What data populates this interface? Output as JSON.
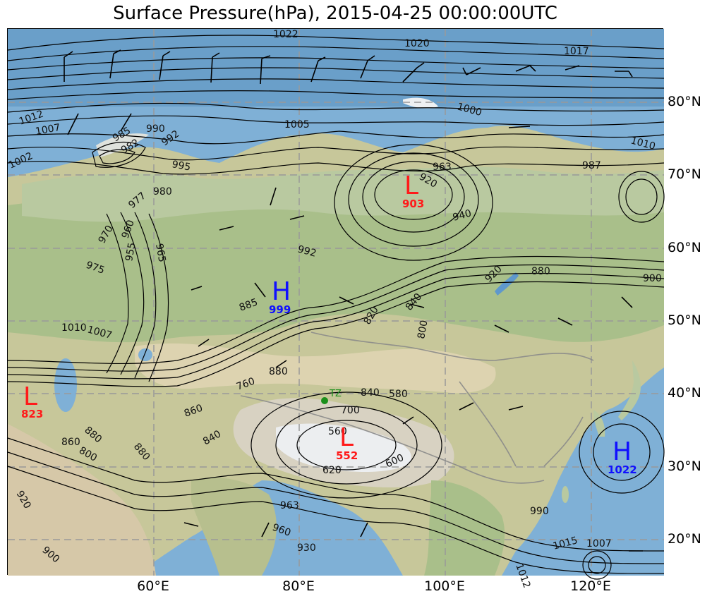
{
  "title": "Surface Pressure(hPa), 2015-04-25 00:00:00UTC",
  "colors": {
    "ocean": "#7fb0d6",
    "land_low": "#d8d6a4",
    "land_green": "#a9bf8a",
    "plateau": "#c9c1b0",
    "snow": "#eef0f2",
    "low_marker": "#ff1a1a",
    "high_marker": "#1010ff",
    "station": "#1a8f1a",
    "grid": "#999999"
  },
  "lat_labels": [
    "80°N",
    "70°N",
    "60°N",
    "50°N",
    "40°N",
    "30°N",
    "20°N"
  ],
  "lon_labels": [
    "60°E",
    "80°E",
    "100°E",
    "120°E"
  ],
  "systems": [
    {
      "type": "low",
      "letter": "L",
      "value": "903"
    },
    {
      "type": "high",
      "letter": "H",
      "value": "999"
    },
    {
      "type": "low",
      "letter": "L",
      "value": "823"
    },
    {
      "type": "low",
      "letter": "L",
      "value": "552"
    },
    {
      "type": "high",
      "letter": "H",
      "value": "1022"
    }
  ],
  "contour_labels": [
    "1022",
    "1020",
    "1017",
    "1000",
    "1012",
    "1007",
    "1005",
    "1002",
    "985",
    "982",
    "990",
    "992",
    "995",
    "987",
    "1010",
    "920",
    "940",
    "963",
    "980",
    "977",
    "970",
    "965",
    "955",
    "960",
    "992",
    "975",
    "885",
    "880",
    "920",
    "900",
    "820",
    "840",
    "800",
    "760",
    "880",
    "840",
    "860",
    "880",
    "700",
    "560",
    "620",
    "600",
    "580",
    "860",
    "880",
    "800",
    "840",
    "1010",
    "1007",
    "963",
    "960",
    "930",
    "990",
    "1015",
    "1007",
    "1012",
    "920",
    "900"
  ],
  "station_label": "TZ"
}
